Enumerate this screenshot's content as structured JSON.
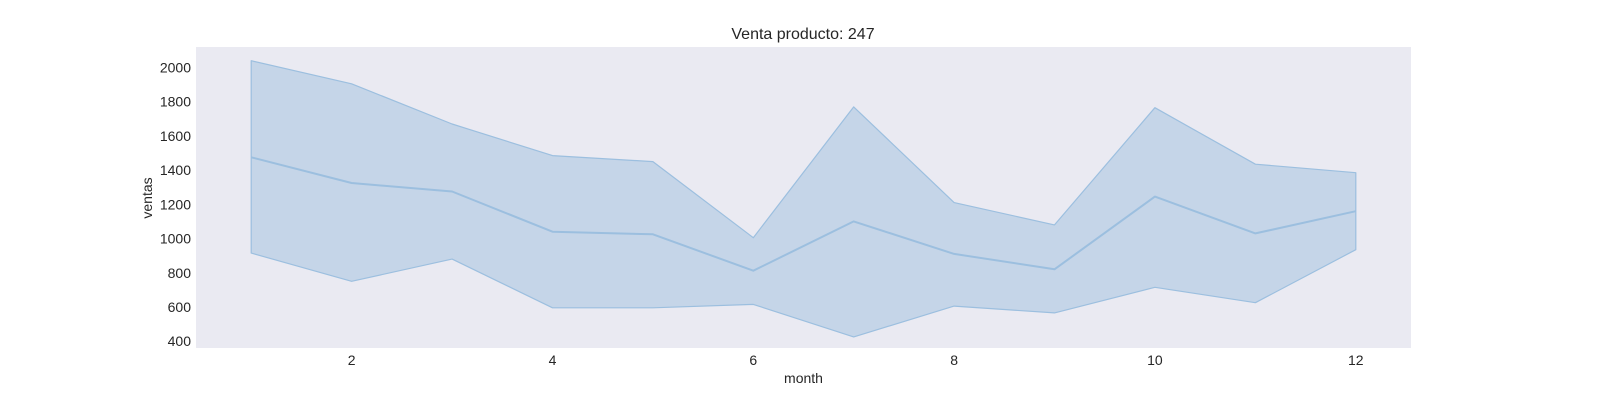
{
  "chart_data": {
    "type": "line",
    "title": "Venta producto: 247",
    "xlabel": "month",
    "ylabel": "ventas",
    "x": [
      1,
      2,
      3,
      4,
      5,
      6,
      7,
      8,
      9,
      10,
      11,
      12
    ],
    "series": [
      {
        "values": [
          1475,
          1325,
          1275,
          1040,
          1025,
          812,
          1100,
          910,
          820,
          1245,
          1030,
          1160
        ],
        "lower": [
          915,
          750,
          880,
          595,
          595,
          615,
          425,
          605,
          565,
          715,
          625,
          935
        ],
        "upper": [
          2040,
          1905,
          1670,
          1485,
          1450,
          1005,
          1770,
          1210,
          1080,
          1765,
          1435,
          1385
        ]
      }
    ],
    "xlim": [
      0.45,
      12.55
    ],
    "ylim": [
      360,
      2120
    ],
    "xticks": [
      2,
      4,
      6,
      8,
      10,
      12
    ],
    "yticks": [
      400,
      600,
      800,
      1000,
      1200,
      1400,
      1600,
      1800,
      2000
    ],
    "grid": false,
    "colors": {
      "plot_background": "#eaeaf2",
      "band_fill": "#a6c3e0",
      "line": "#9cbfdf"
    }
  }
}
